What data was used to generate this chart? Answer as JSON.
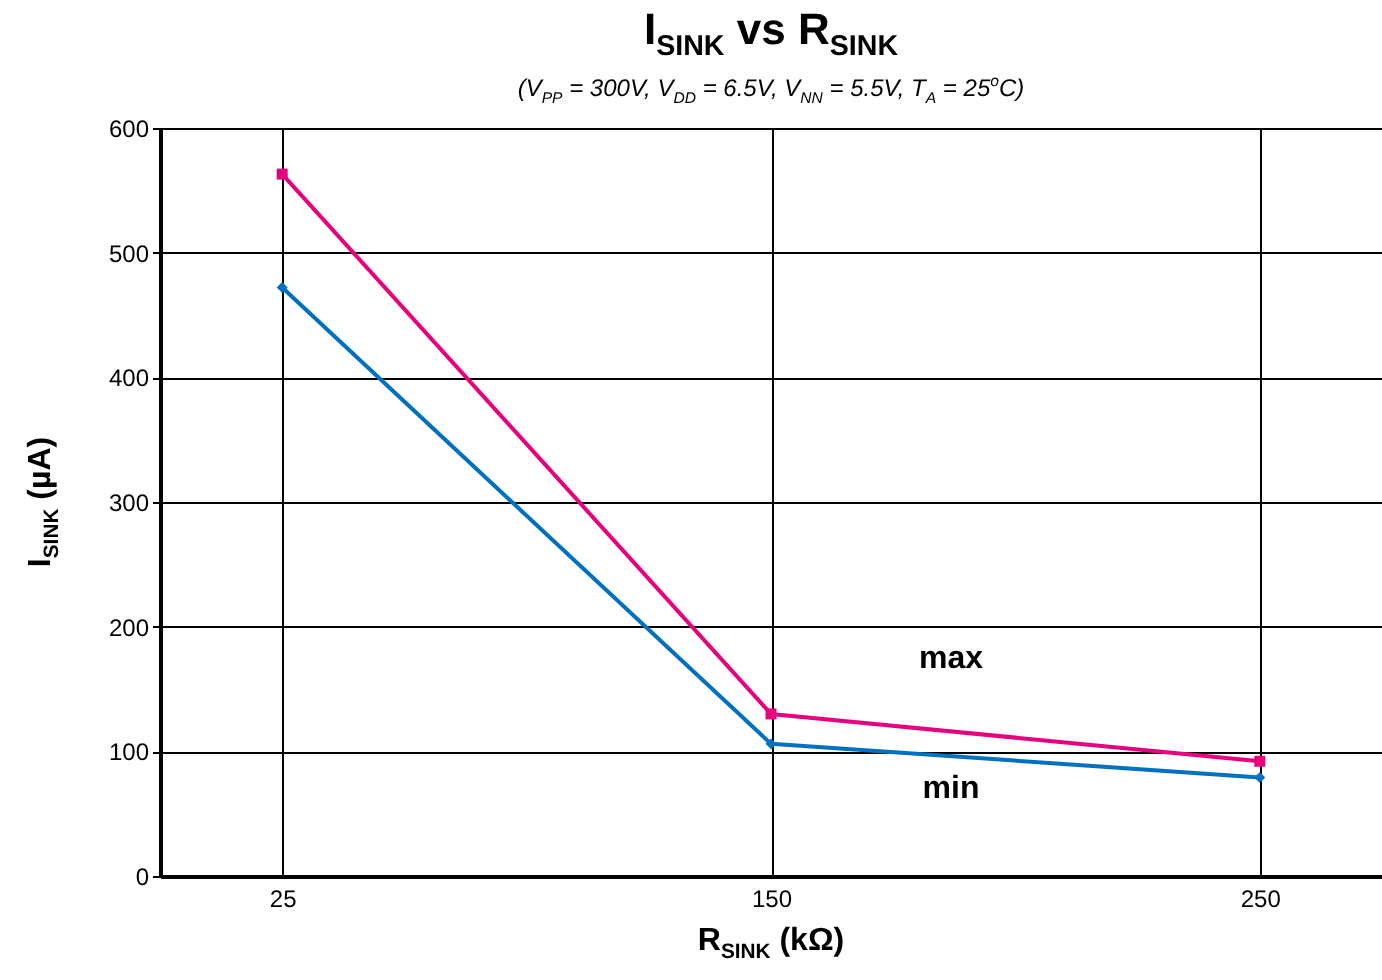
{
  "chart_data": {
    "type": "line",
    "title": "I$_{SINK}$ vs R$_{SINK}$",
    "subtitle": "(V$_{PP}$ = 300V, V$_{DD}$ = 6.5V, V$_{NN}$  = 5.5V, T$_{A}$ = 25$^{o}$C)",
    "xlabel": "R$_{SINK}$ (kΩ)",
    "ylabel": "I$_{SINK}$ (µA)",
    "categories": [
      "25",
      "150",
      "250"
    ],
    "series": [
      {
        "name": "max",
        "color": "#e6007e",
        "marker": "square",
        "values": [
          563,
          130,
          92
        ]
      },
      {
        "name": "min",
        "color": "#0070c0",
        "marker": "diamond",
        "values": [
          472,
          106,
          79
        ]
      }
    ],
    "ylim": [
      0,
      600
    ],
    "yticks": [
      0,
      100,
      200,
      300,
      400,
      500,
      600
    ],
    "grid": true,
    "line_style": "solid"
  }
}
